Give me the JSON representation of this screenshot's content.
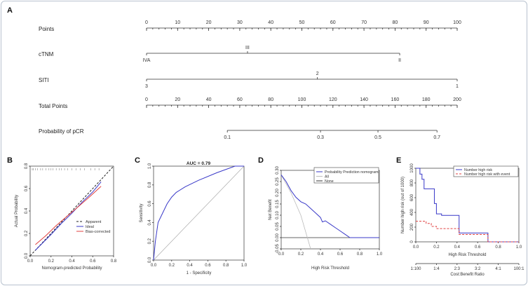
{
  "panel_labels": {
    "A": "A",
    "B": "B",
    "C": "C",
    "D": "D",
    "E": "E"
  },
  "chart_data": [
    {
      "type": "nomogram",
      "panel": "A",
      "rows": [
        {
          "name": "Points",
          "kind": "scale",
          "min": 0,
          "max": 100,
          "ticks": [
            0,
            10,
            20,
            30,
            40,
            50,
            60,
            70,
            80,
            90,
            100
          ],
          "tick_labels": [
            "0",
            "10",
            "20",
            "30",
            "40",
            "50",
            "60",
            "70",
            "80",
            "90",
            "100"
          ]
        },
        {
          "name": "cTNM",
          "kind": "categorical",
          "levels": [
            {
              "label": "IVA",
              "points": 0,
              "side": "below"
            },
            {
              "label": "III",
              "points": 32.5,
              "side": "above"
            },
            {
              "label": "II",
              "points": 81.5,
              "side": "below"
            }
          ]
        },
        {
          "name": "SITI",
          "kind": "categorical",
          "levels": [
            {
              "label": "3",
              "points": 0,
              "side": "below"
            },
            {
              "label": "2",
              "points": 55,
              "side": "above"
            },
            {
              "label": "1",
              "points": 100,
              "side": "below"
            }
          ]
        },
        {
          "name": "Total Points",
          "kind": "scale",
          "min": 0,
          "max": 200,
          "ticks": [
            0,
            20,
            40,
            60,
            80,
            100,
            120,
            140,
            160,
            180,
            200
          ],
          "tick_labels": [
            "0",
            "20",
            "40",
            "60",
            "80",
            "100",
            "120",
            "140",
            "160",
            "180",
            "200"
          ]
        },
        {
          "name": "Probability of pCR",
          "kind": "probability",
          "ticks": [
            {
              "label": "0.1",
              "total": 52
            },
            {
              "label": "0.3",
              "total": 112
            },
            {
              "label": "0.5",
              "total": 149
            },
            {
              "label": "0.7",
              "total": 187
            }
          ],
          "line_from": 52,
          "line_to": 187
        }
      ]
    },
    {
      "type": "line",
      "panel": "B",
      "xlabel": "Nomogram-predicted Probability",
      "ylabel": "Actual Probability",
      "xlim": [
        0,
        0.8
      ],
      "ylim": [
        0,
        0.8
      ],
      "xticks": [
        "0.0",
        "0.2",
        "0.4",
        "0.6",
        "0.8"
      ],
      "yticks": [
        "0.0",
        "0.2",
        "0.4",
        "0.6",
        "0.8"
      ],
      "legend": [
        "Apparent",
        "Ideal",
        "Bias-corrected"
      ],
      "series": [
        {
          "name": "Apparent",
          "x": [
            0,
            0.8
          ],
          "y": [
            0,
            0.8
          ]
        },
        {
          "name": "Ideal",
          "x": [
            0.05,
            0.2,
            0.3,
            0.4,
            0.5,
            0.6,
            0.68
          ],
          "y": [
            0.05,
            0.19,
            0.29,
            0.38,
            0.48,
            0.57,
            0.66
          ]
        },
        {
          "name": "Bias-corrected",
          "x": [
            0.05,
            0.15,
            0.25,
            0.35,
            0.45,
            0.55,
            0.68
          ],
          "y": [
            0.1,
            0.18,
            0.27,
            0.35,
            0.43,
            0.51,
            0.62
          ]
        }
      ],
      "rug_x": [
        0.02,
        0.03,
        0.05,
        0.07,
        0.1,
        0.12,
        0.15,
        0.18,
        0.2,
        0.22,
        0.25,
        0.28,
        0.3,
        0.33,
        0.36,
        0.4,
        0.44,
        0.48,
        0.52,
        0.58,
        0.62,
        0.66
      ]
    },
    {
      "type": "line",
      "panel": "C",
      "title": "AUC = 0.79",
      "xlabel": "1 - Specificity",
      "ylabel": "Sensitivity",
      "xlim": [
        0,
        1
      ],
      "ylim": [
        0,
        1
      ],
      "xticks": [
        "0.0",
        "0.2",
        "0.4",
        "0.6",
        "0.8",
        "1.0"
      ],
      "yticks": [
        "0.0",
        "0.2",
        "0.4",
        "0.6",
        "0.8",
        "1.0"
      ],
      "series": [
        {
          "name": "ROC",
          "x": [
            0,
            0.02,
            0.05,
            0.1,
            0.15,
            0.2,
            0.25,
            0.35,
            0.5,
            0.7,
            0.9,
            1.0
          ],
          "y": [
            0,
            0.2,
            0.4,
            0.5,
            0.6,
            0.67,
            0.72,
            0.78,
            0.85,
            0.93,
            1.0,
            1.0
          ]
        },
        {
          "name": "Reference",
          "x": [
            0,
            1
          ],
          "y": [
            0,
            1
          ]
        }
      ]
    },
    {
      "type": "line",
      "panel": "D",
      "xlabel": "High Risk Threshold",
      "ylabel": "Net Benefit",
      "xlim": [
        0,
        1
      ],
      "ylim": [
        -0.05,
        0.3
      ],
      "xticks": [
        "0.0",
        "0.2",
        "0.4",
        "0.6",
        "0.8",
        "1.0"
      ],
      "yticks": [
        "-0.05",
        "0.00",
        "0.05",
        "0.10",
        "0.15",
        "0.20",
        "0.25",
        "0.30"
      ],
      "legend": [
        "Probability Prediction nomogram",
        "All",
        "None"
      ],
      "series": [
        {
          "name": "Probability Prediction nomogram",
          "x": [
            0,
            0.05,
            0.1,
            0.15,
            0.2,
            0.25,
            0.3,
            0.35,
            0.4,
            0.42,
            0.45,
            0.5,
            0.55,
            0.6,
            0.65,
            0.7,
            1.0
          ],
          "y": [
            0.28,
            0.25,
            0.21,
            0.18,
            0.16,
            0.15,
            0.13,
            0.11,
            0.09,
            0.07,
            0.075,
            0.06,
            0.045,
            0.03,
            0.015,
            0,
            0
          ]
        },
        {
          "name": "All",
          "x": [
            0,
            0.1,
            0.2,
            0.3
          ],
          "y": [
            0.28,
            0.2,
            0.1,
            -0.05
          ]
        },
        {
          "name": "None",
          "x": [
            0,
            1
          ],
          "y": [
            0,
            0
          ]
        }
      ]
    },
    {
      "type": "line",
      "panel": "E",
      "xlabel": "High Risk Threshold",
      "ylabel": "Number high risk (out of 1000)",
      "x2label": "Cost:Benefit Ratio",
      "xlim": [
        0,
        1
      ],
      "ylim": [
        0,
        1000
      ],
      "xticks": [
        "0.0",
        "0.2",
        "0.4",
        "0.6",
        "0.8",
        "1.0"
      ],
      "yticks": [
        "0",
        "200",
        "400",
        "600",
        "800",
        "1000"
      ],
      "x2ticks": [
        "1:100",
        "1:4",
        "2:3",
        "3:2",
        "4:1",
        "100:1"
      ],
      "legend": [
        "Number high risk",
        "Number high risk with event"
      ],
      "series": [
        {
          "name": "Number high risk",
          "x": [
            0,
            0.02,
            0.04,
            0.06,
            0.08,
            0.1,
            0.15,
            0.18,
            0.2,
            0.22,
            0.25,
            0.3,
            0.35,
            0.4,
            0.42,
            0.5,
            0.6,
            0.68,
            0.7,
            1.0
          ],
          "y": [
            1000,
            1000,
            920,
            850,
            720,
            720,
            720,
            520,
            380,
            380,
            360,
            360,
            360,
            360,
            120,
            120,
            120,
            120,
            0,
            0
          ]
        },
        {
          "name": "Number high risk with event",
          "x": [
            0,
            0.05,
            0.1,
            0.15,
            0.2,
            0.25,
            0.35,
            0.4,
            0.42,
            0.5,
            0.6,
            0.68,
            0.7,
            1.0
          ],
          "y": [
            280,
            280,
            250,
            210,
            180,
            180,
            180,
            180,
            100,
            100,
            100,
            100,
            0,
            0
          ]
        }
      ]
    }
  ]
}
